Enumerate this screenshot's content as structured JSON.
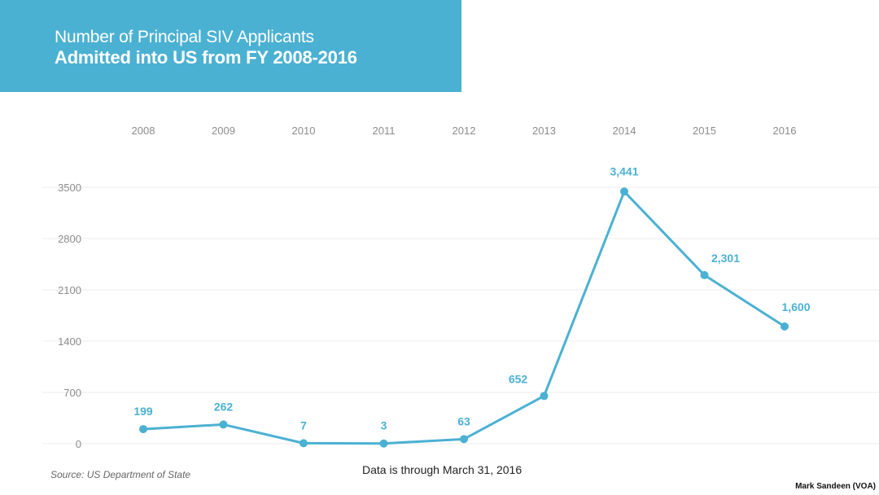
{
  "chart_data": {
    "type": "line",
    "title": "Number of Principal SIV Applicants",
    "subtitle": "Admitted into US from FY 2008-2016",
    "categories": [
      "2008",
      "2009",
      "2010",
      "2011",
      "2012",
      "2013",
      "2014",
      "2015",
      "2016"
    ],
    "series": [
      {
        "values": [
          199,
          262,
          7,
          3,
          63,
          652,
          3441,
          2301,
          1600
        ]
      }
    ],
    "data_labels": [
      "199",
      "262",
      "7",
      "3",
      "63",
      "652",
      "3,441",
      "2,301",
      "1,600"
    ],
    "y_ticks": [
      "0",
      "700",
      "1400",
      "2100",
      "2800",
      "3500"
    ],
    "y_tick_values": [
      0,
      700,
      1400,
      2100,
      2800,
      3500
    ],
    "ylim": [
      0,
      3500
    ],
    "x_axis_position": "top",
    "grid": true,
    "legend": "none",
    "line_color": "#4bb1d3",
    "grid_color": "#ececec"
  },
  "footer": {
    "source": "Source: US Department of State",
    "note": "Data is through March 31, 2016",
    "credit": "Mark Sandeen (VOA)"
  }
}
